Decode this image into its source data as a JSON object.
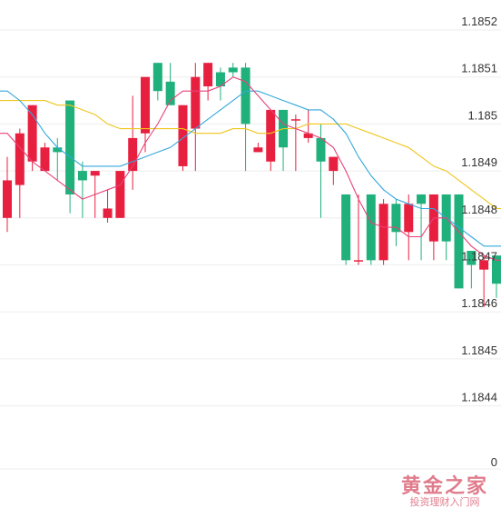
{
  "chart_data": {
    "type": "candlestick",
    "title": "",
    "xlabel": "",
    "ylabel": "",
    "y_axis_position": "right",
    "ylim": [
      1.1842,
      1.18525
    ],
    "y_ticks": [
      1.1852,
      1.1851,
      1.185,
      1.1849,
      1.1848,
      1.1847,
      1.1846,
      1.1845,
      1.1844
    ],
    "y_tick_labels": [
      "1.1852",
      "1.1851",
      "1.185",
      "1.1849",
      "1.1848",
      "1.1847",
      "1.1846",
      "1.1845",
      "1.1844"
    ],
    "bottom_label": "0",
    "current_price_label": "1.1847",
    "grid": true,
    "colors": {
      "up": "#e8203f",
      "down": "#20b07c",
      "ma_short": "#e8417a",
      "ma_mid": "#34a8dc",
      "ma_long": "#f0c51a",
      "grid": "#eeeeee"
    },
    "candles": [
      {
        "o": 1.1848,
        "h": 1.18493,
        "l": 1.18477,
        "c": 1.18488
      },
      {
        "o": 1.18487,
        "h": 1.18499,
        "l": 1.1848,
        "c": 1.18498
      },
      {
        "o": 1.18492,
        "h": 1.18504,
        "l": 1.1849,
        "c": 1.18504
      },
      {
        "o": 1.1849,
        "h": 1.18496,
        "l": 1.1849,
        "c": 1.18495
      },
      {
        "o": 1.18495,
        "h": 1.18497,
        "l": 1.18488,
        "c": 1.18494
      },
      {
        "o": 1.18505,
        "h": 1.18505,
        "l": 1.18481,
        "c": 1.18485
      },
      {
        "o": 1.1849,
        "h": 1.18492,
        "l": 1.1848,
        "c": 1.18488
      },
      {
        "o": 1.18489,
        "h": 1.1849,
        "l": 1.1848,
        "c": 1.1849
      },
      {
        "o": 1.1848,
        "h": 1.18486,
        "l": 1.18479,
        "c": 1.18482
      },
      {
        "o": 1.1848,
        "h": 1.1849,
        "l": 1.1848,
        "c": 1.1849
      },
      {
        "o": 1.1849,
        "h": 1.18506,
        "l": 1.18486,
        "c": 1.18497
      },
      {
        "o": 1.18498,
        "h": 1.1851,
        "l": 1.18494,
        "c": 1.1851
      },
      {
        "o": 1.18513,
        "h": 1.18513,
        "l": 1.18505,
        "c": 1.18507
      },
      {
        "o": 1.18509,
        "h": 1.18513,
        "l": 1.18504,
        "c": 1.18504
      },
      {
        "o": 1.18491,
        "h": 1.18504,
        "l": 1.1849,
        "c": 1.18504
      },
      {
        "o": 1.18499,
        "h": 1.18513,
        "l": 1.1849,
        "c": 1.1851
      },
      {
        "o": 1.18508,
        "h": 1.18513,
        "l": 1.18505,
        "c": 1.18513
      },
      {
        "o": 1.18511,
        "h": 1.18512,
        "l": 1.18505,
        "c": 1.18508
      },
      {
        "o": 1.18512,
        "h": 1.18513,
        "l": 1.1851,
        "c": 1.18511
      },
      {
        "o": 1.18512,
        "h": 1.18513,
        "l": 1.1849,
        "c": 1.185
      },
      {
        "o": 1.18494,
        "h": 1.18496,
        "l": 1.18494,
        "c": 1.18495
      },
      {
        "o": 1.18492,
        "h": 1.18503,
        "l": 1.1849,
        "c": 1.18503
      },
      {
        "o": 1.18503,
        "h": 1.18503,
        "l": 1.1849,
        "c": 1.18495
      },
      {
        "o": 1.18501,
        "h": 1.18502,
        "l": 1.1849,
        "c": 1.18501
      },
      {
        "o": 1.18497,
        "h": 1.18503,
        "l": 1.18496,
        "c": 1.18498
      },
      {
        "o": 1.18497,
        "h": 1.185,
        "l": 1.1848,
        "c": 1.18492
      },
      {
        "o": 1.1849,
        "h": 1.18493,
        "l": 1.18487,
        "c": 1.18493
      },
      {
        "o": 1.18485,
        "h": 1.18485,
        "l": 1.1847,
        "c": 1.18471
      },
      {
        "o": 1.18471,
        "h": 1.18485,
        "l": 1.1847,
        "c": 1.18471
      },
      {
        "o": 1.18485,
        "h": 1.18485,
        "l": 1.1847,
        "c": 1.18471
      },
      {
        "o": 1.18471,
        "h": 1.18484,
        "l": 1.1847,
        "c": 1.18483
      },
      {
        "o": 1.18483,
        "h": 1.18484,
        "l": 1.18474,
        "c": 1.18477
      },
      {
        "o": 1.18477,
        "h": 1.18485,
        "l": 1.18471,
        "c": 1.18483
      },
      {
        "o": 1.18485,
        "h": 1.18485,
        "l": 1.18471,
        "c": 1.18483
      },
      {
        "o": 1.18475,
        "h": 1.18485,
        "l": 1.18471,
        "c": 1.18485
      },
      {
        "o": 1.18485,
        "h": 1.18485,
        "l": 1.18471,
        "c": 1.18475
      },
      {
        "o": 1.18485,
        "h": 1.18485,
        "l": 1.18465,
        "c": 1.18465
      },
      {
        "o": 1.18473,
        "h": 1.18473,
        "l": 1.18465,
        "c": 1.1847
      },
      {
        "o": 1.18469,
        "h": 1.18472,
        "l": 1.18461,
        "c": 1.18471
      },
      {
        "o": 1.18472,
        "h": 1.18472,
        "l": 1.18463,
        "c": 1.18466
      }
    ],
    "ma_short": [
      1.18498,
      1.18495,
      1.18492,
      1.1849,
      1.18488,
      1.18486,
      1.18484,
      1.18485,
      1.18486,
      1.18487,
      1.18491,
      1.18496,
      1.185,
      1.18505,
      1.18507,
      1.18507,
      1.18507,
      1.18508,
      1.1851,
      1.18509,
      1.18506,
      1.18503,
      1.185,
      1.18499,
      1.18498,
      1.18497,
      1.18495,
      1.1849,
      1.18484,
      1.18479,
      1.18478,
      1.18478,
      1.18476,
      1.18476,
      1.1848,
      1.1848,
      1.18477,
      1.18474,
      1.18472,
      1.18471
    ],
    "ma_mid": [
      1.18507,
      1.18505,
      1.18502,
      1.18498,
      1.18495,
      1.18493,
      1.18491,
      1.18491,
      1.18491,
      1.18491,
      1.18492,
      1.18493,
      1.18494,
      1.18495,
      1.18497,
      1.18499,
      1.18501,
      1.18503,
      1.18505,
      1.18507,
      1.18507,
      1.18506,
      1.18505,
      1.18504,
      1.18503,
      1.18503,
      1.18501,
      1.18498,
      1.18493,
      1.18489,
      1.18486,
      1.18484,
      1.18483,
      1.18482,
      1.18482,
      1.1848,
      1.18478,
      1.18476,
      1.18474,
      1.18474
    ],
    "ma_long": [
      1.18505,
      1.18505,
      1.18505,
      1.18505,
      1.18504,
      1.18504,
      1.18503,
      1.18502,
      1.185,
      1.18499,
      1.18499,
      1.18499,
      1.18499,
      1.18499,
      1.18499,
      1.18498,
      1.18498,
      1.18498,
      1.18499,
      1.18499,
      1.18498,
      1.18498,
      1.18499,
      1.18499,
      1.185,
      1.185,
      1.185,
      1.185,
      1.18499,
      1.18498,
      1.18497,
      1.18496,
      1.18495,
      1.18493,
      1.18491,
      1.1849,
      1.18488,
      1.18486,
      1.18484,
      1.18482
    ]
  },
  "watermark": {
    "main": "黄金之家",
    "sub": "投资理财入门网"
  }
}
